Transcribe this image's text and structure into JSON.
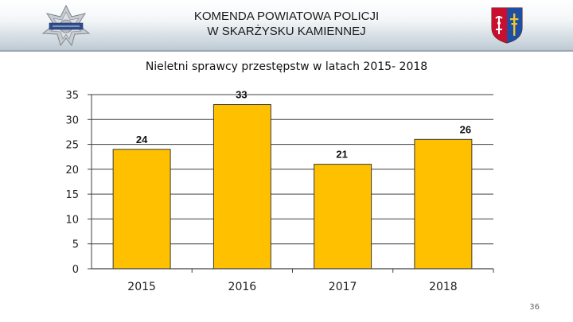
{
  "header": {
    "title_line1": "KOMENDA POWIATOWA POLICJI",
    "title_line2": "W SKARŻYSKU KAMIENNEJ",
    "left_logo_icon": "police-star-badge-icon",
    "right_logo_icon": "coat-of-arms-icon"
  },
  "page_number": "36",
  "colors": {
    "bar": "#ffc000",
    "bar_edge": "#3a3a3a",
    "grid": "#404040"
  },
  "chart_data": {
    "type": "bar",
    "title": "Nieletni sprawcy przestępstw w latach 2015- 2018",
    "categories": [
      "2015",
      "2016",
      "2017",
      "2018"
    ],
    "values": [
      24,
      33,
      21,
      26
    ],
    "data_labels": [
      "24",
      "33",
      "21",
      "26"
    ],
    "y_ticks": [
      0,
      5,
      10,
      15,
      20,
      25,
      30,
      35
    ],
    "ylim": [
      0,
      35
    ],
    "xlabel": "",
    "ylabel": "",
    "grid": true,
    "legend": "none"
  }
}
